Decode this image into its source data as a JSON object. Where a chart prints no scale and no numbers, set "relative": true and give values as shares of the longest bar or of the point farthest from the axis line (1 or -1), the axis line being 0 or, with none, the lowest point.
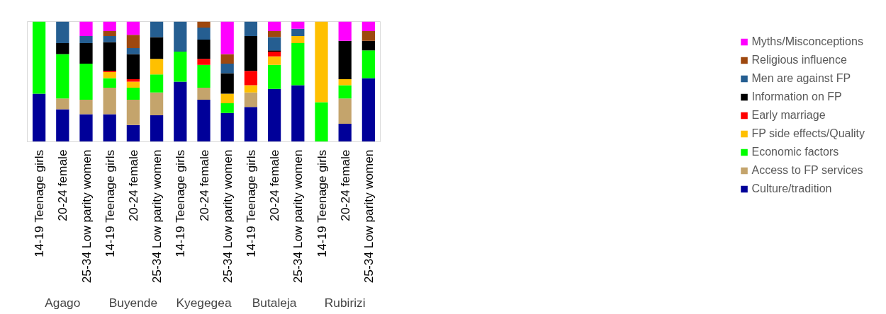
{
  "chart_data": {
    "type": "bar",
    "stacked": true,
    "relative": true,
    "legend": "right",
    "categories": [
      "14-19 Teenage girls",
      "20-24 female",
      "25-34 Low parity women",
      "14-19 Teenage girls",
      "20-24 female",
      "25-34 Low parity women",
      "14-19 Teenage girls",
      "20-24 female",
      "25-34 Low parity women",
      "14-19 Teenage girls",
      "20-24 female",
      "25-34 Low parity women",
      "14-19 Teenage girls",
      "20-24 female",
      "25-34 Low parity women"
    ],
    "annotations": [
      "Agago",
      "Buyende",
      "Kyegegea",
      "Butaleja",
      "Rubirizi"
    ],
    "series": [
      {
        "name": "Culture/tradition",
        "color": "#000099",
        "values": [
          0.4,
          0.27,
          0.23,
          0.23,
          0.14,
          0.22,
          0.5,
          0.35,
          0.24,
          0.29,
          0.44,
          0.47,
          0,
          0.15,
          0.53
        ]
      },
      {
        "name": "Access to FP services",
        "color": "#c4a46c",
        "values": [
          0,
          0.09,
          0.12,
          0.22,
          0.21,
          0.19,
          0,
          0.1,
          0,
          0.12,
          0,
          0,
          0,
          0.21,
          0
        ]
      },
      {
        "name": "Economic factors",
        "color": "#00ff00",
        "values": [
          0.6,
          0.37,
          0.3,
          0.08,
          0.1,
          0.15,
          0.25,
          0.19,
          0.08,
          0,
          0.2,
          0.35,
          0.33,
          0.11,
          0.23
        ]
      },
      {
        "name": "FP side effects/Quality",
        "color": "#ffc000",
        "values": [
          0,
          0,
          0,
          0.05,
          0.05,
          0.13,
          0,
          0,
          0.08,
          0.06,
          0.07,
          0.06,
          0.67,
          0.05,
          0
        ]
      },
      {
        "name": "Early marriage",
        "color": "#ff0000",
        "values": [
          0,
          0,
          0,
          0.01,
          0.02,
          0,
          0,
          0.05,
          0,
          0.12,
          0.04,
          0,
          0,
          0,
          0
        ]
      },
      {
        "name": "Information on FP",
        "color": "#000000",
        "values": [
          0,
          0.09,
          0.17,
          0.24,
          0.21,
          0.18,
          0,
          0.16,
          0.17,
          0.29,
          0.01,
          0,
          0,
          0.32,
          0.08
        ]
      },
      {
        "name": "Men are against FP",
        "color": "#255e91",
        "values": [
          0,
          0.18,
          0.06,
          0.05,
          0.05,
          0.13,
          0.25,
          0.1,
          0.08,
          0.12,
          0.11,
          0.06,
          0,
          0,
          0
        ]
      },
      {
        "name": "Religious influence",
        "color": "#9e480e",
        "values": [
          0,
          0,
          0,
          0.04,
          0.11,
          0,
          0,
          0.05,
          0.08,
          0,
          0.05,
          0,
          0,
          0,
          0.08
        ]
      },
      {
        "name": "Myths/Misconceptions",
        "color": "#ff00ff",
        "values": [
          0,
          0,
          0.12,
          0.08,
          0.11,
          0,
          0,
          0,
          0.27,
          0,
          0.08,
          0.06,
          0,
          0.16,
          0.08
        ]
      }
    ]
  }
}
